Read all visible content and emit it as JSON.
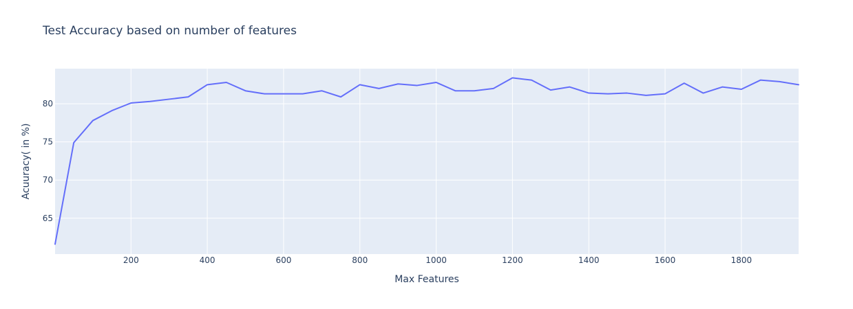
{
  "chart_data": {
    "type": "line",
    "title": "Test Accuracy based on number of features",
    "xlabel": "Max Features",
    "ylabel": "Acuuracy( in %)",
    "xlim": [
      1,
      1950
    ],
    "ylim": [
      60.3,
      84.6
    ],
    "grid": true,
    "x_ticks": [
      200,
      400,
      600,
      800,
      1000,
      1200,
      1400,
      1600,
      1800
    ],
    "y_ticks": [
      65,
      70,
      75,
      80
    ],
    "series": [
      {
        "color": "#636efa",
        "x": [
          1,
          50,
          100,
          150,
          200,
          250,
          300,
          350,
          400,
          450,
          500,
          550,
          600,
          650,
          700,
          750,
          800,
          850,
          900,
          950,
          1000,
          1050,
          1100,
          1150,
          1200,
          1250,
          1300,
          1350,
          1400,
          1450,
          1500,
          1550,
          1600,
          1650,
          1700,
          1750,
          1800,
          1850,
          1900,
          1950
        ],
        "y": [
          61.6,
          74.9,
          77.8,
          79.1,
          80.1,
          80.3,
          80.6,
          80.9,
          82.5,
          82.8,
          81.7,
          81.3,
          81.3,
          81.3,
          81.7,
          80.9,
          82.5,
          82.0,
          82.6,
          82.4,
          82.8,
          81.7,
          81.7,
          82.0,
          83.4,
          83.1,
          81.8,
          82.2,
          81.4,
          81.3,
          81.4,
          81.1,
          81.3,
          82.7,
          81.4,
          82.2,
          81.9,
          83.1,
          82.9,
          82.5
        ]
      }
    ]
  }
}
